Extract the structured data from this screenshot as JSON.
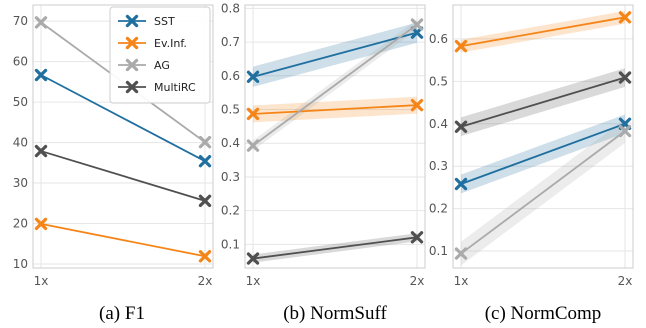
{
  "chart_data": [
    {
      "type": "line",
      "caption": "(a) F1",
      "categories": [
        "1x",
        "2x"
      ],
      "ylim": [
        9,
        74
      ],
      "yticks": [
        10,
        20,
        30,
        40,
        50,
        60,
        70
      ],
      "ytick_labels": [
        "10",
        "20",
        "30",
        "40",
        "50",
        "60",
        "70"
      ],
      "grid": true,
      "legend": "top-right",
      "series": [
        {
          "name": "SST",
          "color": "#1f6f9f",
          "values": [
            56.7,
            35.4
          ],
          "ci": 0
        },
        {
          "name": "Ev.Inf.",
          "color": "#f58518",
          "values": [
            19.9,
            11.9
          ],
          "ci": 0
        },
        {
          "name": "AG",
          "color": "#aaaaaa",
          "values": [
            69.7,
            40.1
          ],
          "ci": 0
        },
        {
          "name": "MultiRC",
          "color": "#505050",
          "values": [
            37.9,
            25.6
          ],
          "ci": 0
        }
      ]
    },
    {
      "type": "line",
      "caption": "(b) NormSuff",
      "categories": [
        "1x",
        "2x"
      ],
      "ylim": [
        0.03,
        0.81
      ],
      "yticks": [
        0.1,
        0.2,
        0.3,
        0.4,
        0.5,
        0.6,
        0.7,
        0.8
      ],
      "ytick_labels": [
        "0.1",
        "0.2",
        "0.3",
        "0.4",
        "0.5",
        "0.6",
        "0.7",
        "0.8"
      ],
      "grid": true,
      "series": [
        {
          "name": "SST",
          "color": "#1f6f9f",
          "values": [
            0.597,
            0.728
          ],
          "ci": 0.03
        },
        {
          "name": "Ev.Inf.",
          "color": "#f58518",
          "values": [
            0.487,
            0.513
          ],
          "ci": 0.025
        },
        {
          "name": "AG",
          "color": "#aaaaaa",
          "values": [
            0.393,
            0.752
          ],
          "ci": 0.015
        },
        {
          "name": "MultiRC",
          "color": "#505050",
          "values": [
            0.058,
            0.121
          ],
          "ci": 0.012
        }
      ]
    },
    {
      "type": "line",
      "caption": "(c) NormComp",
      "categories": [
        "1x",
        "2x"
      ],
      "ylim": [
        0.06,
        0.68
      ],
      "yticks": [
        0.1,
        0.2,
        0.3,
        0.4,
        0.5,
        0.6
      ],
      "ytick_labels": [
        "0.1",
        "0.2",
        "0.3",
        "0.4",
        "0.5",
        "0.6"
      ],
      "grid": true,
      "series": [
        {
          "name": "SST",
          "color": "#1f6f9f",
          "values": [
            0.258,
            0.4
          ],
          "ci": 0.022
        },
        {
          "name": "Ev.Inf.",
          "color": "#f58518",
          "values": [
            0.583,
            0.651
          ],
          "ci": 0.015
        },
        {
          "name": "AG",
          "color": "#aaaaaa",
          "values": [
            0.094,
            0.383
          ],
          "ci": 0.028
        },
        {
          "name": "MultiRC",
          "color": "#505050",
          "values": [
            0.393,
            0.509
          ],
          "ci": 0.022
        }
      ]
    }
  ]
}
